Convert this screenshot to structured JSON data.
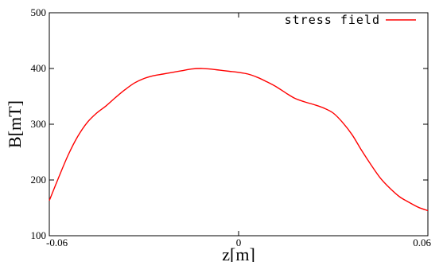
{
  "chart_data": {
    "type": "line",
    "title": "",
    "xlabel": "z[m]",
    "ylabel": "B[mT]",
    "xlim": [
      -0.06,
      0.06
    ],
    "ylim": [
      100,
      500
    ],
    "x_ticks": [
      "-0.06",
      "0",
      "0.06"
    ],
    "y_ticks": [
      "100",
      "200",
      "300",
      "400",
      "500"
    ],
    "grid": false,
    "legend_position": "top-right",
    "series": [
      {
        "name": "stress field",
        "color": "#ff0000",
        "x": [
          -0.06,
          -0.057,
          -0.054,
          -0.051,
          -0.048,
          -0.045,
          -0.042,
          -0.039,
          -0.036,
          -0.033,
          -0.03,
          -0.027,
          -0.024,
          -0.021,
          -0.018,
          -0.015,
          -0.012,
          -0.009,
          -0.006,
          -0.003,
          0,
          0.003,
          0.006,
          0.009,
          0.012,
          0.015,
          0.018,
          0.021,
          0.024,
          0.027,
          0.03,
          0.033,
          0.036,
          0.039,
          0.042,
          0.045,
          0.048,
          0.051,
          0.054,
          0.057,
          0.06
        ],
        "y": [
          163,
          205,
          245,
          278,
          303,
          320,
          333,
          348,
          362,
          374,
          382,
          387,
          390,
          393,
          396,
          399,
          400,
          399,
          397,
          395,
          393,
          390,
          384,
          376,
          367,
          356,
          346,
          340,
          335,
          329,
          320,
          303,
          281,
          253,
          227,
          203,
          185,
          170,
          160,
          151,
          145
        ]
      }
    ]
  }
}
